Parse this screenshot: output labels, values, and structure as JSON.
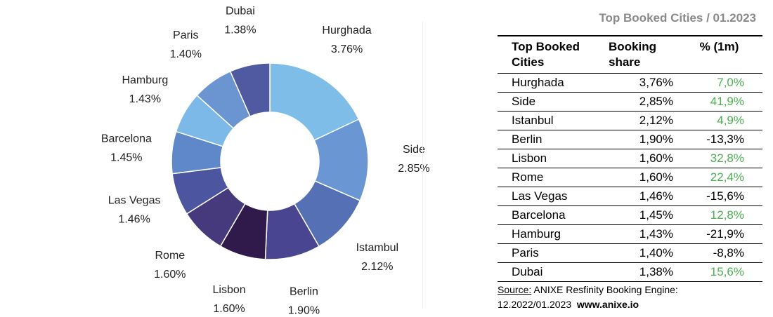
{
  "chart_data": {
    "type": "donut",
    "categories": [
      "Hurghada",
      "Side",
      "Istambul",
      "Berlin",
      "Lisbon",
      "Rome",
      "Las Vegas",
      "Barcelona",
      "Hamburg",
      "Paris",
      "Dubai"
    ],
    "values": [
      3.76,
      2.85,
      2.12,
      1.9,
      1.6,
      1.6,
      1.46,
      1.45,
      1.43,
      1.4,
      1.38
    ],
    "value_labels": [
      "3.76%",
      "2.85%",
      "2.12%",
      "1.90%",
      "1.60%",
      "1.60%",
      "1.46%",
      "1.45%",
      "1.43%",
      "1.40%",
      "1.38%"
    ],
    "colors": [
      "#7dbde8",
      "#6a97d3",
      "#5670b6",
      "#4a4591",
      "#2f1a4b",
      "#473a7c",
      "#4c56a0",
      "#5f88ca",
      "#7cb9e8",
      "#6a95d1",
      "#4f5aa1"
    ]
  },
  "table": {
    "title": "Top Booked Cities / 01.2023",
    "header": [
      "Top Booked Cities",
      "Booking share",
      "% (1m)"
    ],
    "rows": [
      [
        "Hurghada",
        "3,76%",
        "7,0%"
      ],
      [
        "Side",
        "2,85%",
        "41,9%"
      ],
      [
        "Istanbul",
        "2,12%",
        "4,9%"
      ],
      [
        "Berlin",
        "1,90%",
        "-13,3%"
      ],
      [
        "Lisbon",
        "1,60%",
        "32,8%"
      ],
      [
        "Rome",
        "1,60%",
        "22,4%"
      ],
      [
        "Las Vegas",
        "1,46%",
        "-15,6%"
      ],
      [
        "Barcelona",
        "1,45%",
        "12,8%"
      ],
      [
        "Hamburg",
        "1,43%",
        "-21,9%"
      ],
      [
        "Paris",
        "1,40%",
        "-8,8%"
      ],
      [
        "Dubai",
        "1,38%",
        "15,6%"
      ]
    ]
  },
  "source": {
    "label": "Source:",
    "text": "ANIXE Resfinity Booking Engine:",
    "period": "12.2022/01.2023",
    "url": "www.anixe.io"
  }
}
